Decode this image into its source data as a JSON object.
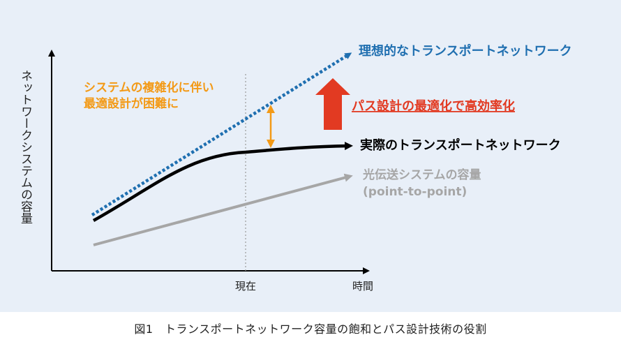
{
  "axes": {
    "ylabel": "ネットワークシステムの容量",
    "xlabel": "時間",
    "now_tick": "現在"
  },
  "series": {
    "ideal": "理想的なトランスポートネットワーク",
    "actual": "実際のトランスポートネットワーク",
    "optical_line1": "光伝送システムの容量",
    "optical_line2": "(point-to-point)"
  },
  "annotations": {
    "complexity_line1": "システムの複雑化に伴い",
    "complexity_line2": "最適設計が困難に",
    "optimization": "パス設計の最適化で高効率化"
  },
  "caption": "図1　トランスポートネットワーク容量の飽和とパス設計技術の役割",
  "colors": {
    "ideal": "#1f6fb0",
    "actual": "#000000",
    "optical": "#a6a6a6",
    "complexity": "#f39a17",
    "optimization": "#e23a22",
    "background": "#e8eff8"
  }
}
